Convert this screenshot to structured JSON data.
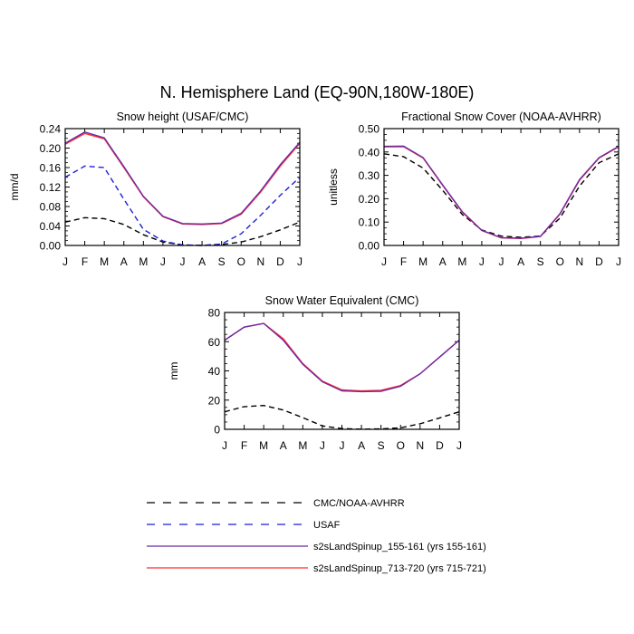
{
  "page_title": "N. Hemisphere Land (EQ-90N,180W-180E)",
  "legend": {
    "items": [
      {
        "label": "CMC/NOAA-AVHRR",
        "color": "#000000",
        "dash": true
      },
      {
        "label": "USAF",
        "color": "#1f1fd6",
        "dash": true
      },
      {
        "label": "s2sLandSpinup_155-161 (yrs 155-161)",
        "color": "#6b2ba8",
        "dash": false
      },
      {
        "label": "s2sLandSpinup_713-720 (yrs 715-721)",
        "color": "#ff2a2a",
        "dash": false
      }
    ]
  },
  "chart_data": [
    {
      "type": "line",
      "title": "Snow height (USAF/CMC)",
      "ylabel": "mm/d",
      "xlabel": "",
      "categories": [
        "J",
        "F",
        "M",
        "A",
        "M",
        "J",
        "J",
        "A",
        "S",
        "O",
        "N",
        "D",
        "J"
      ],
      "ylim": [
        0,
        0.24
      ],
      "yticks": [
        "0.00",
        "0.04",
        "0.08",
        "0.12",
        "0.16",
        "0.20",
        "0.24"
      ],
      "series": [
        {
          "name": "CMC/NOAA-AVHRR",
          "color": "#000000",
          "dash": true,
          "values": [
            0.048,
            0.057,
            0.055,
            0.043,
            0.022,
            0.007,
            0.001,
            0.0,
            0.002,
            0.007,
            0.018,
            0.032,
            0.048
          ]
        },
        {
          "name": "USAF",
          "color": "#1f1fd6",
          "dash": true,
          "values": [
            0.14,
            0.163,
            0.16,
            0.095,
            0.033,
            0.009,
            0.001,
            0.0,
            0.003,
            0.024,
            0.062,
            0.103,
            0.14
          ]
        },
        {
          "name": "s2sLandSpinup_713-720 (yrs 715-721)",
          "color": "#ff2a2a",
          "dash": false,
          "values": [
            0.208,
            0.23,
            0.219,
            0.16,
            0.1,
            0.059,
            0.044,
            0.043,
            0.045,
            0.064,
            0.11,
            0.163,
            0.21
          ]
        },
        {
          "name": "s2sLandSpinup_155-161 (yrs 155-161)",
          "color": "#6b2ba8",
          "dash": false,
          "values": [
            0.21,
            0.233,
            0.221,
            0.162,
            0.101,
            0.06,
            0.045,
            0.044,
            0.046,
            0.066,
            0.112,
            0.166,
            0.212
          ]
        }
      ]
    },
    {
      "type": "line",
      "title": "Fractional Snow Cover (NOAA-AVHRR)",
      "ylabel": "unitless",
      "xlabel": "",
      "categories": [
        "J",
        "F",
        "M",
        "A",
        "M",
        "J",
        "J",
        "A",
        "S",
        "O",
        "N",
        "D",
        "J"
      ],
      "ylim": [
        0,
        0.5
      ],
      "yticks": [
        "0.00",
        "0.10",
        "0.20",
        "0.30",
        "0.40",
        "0.50"
      ],
      "series": [
        {
          "name": "CMC/NOAA-AVHRR",
          "color": "#000000",
          "dash": true,
          "values": [
            0.392,
            0.38,
            0.331,
            0.236,
            0.133,
            0.066,
            0.04,
            0.035,
            0.04,
            0.117,
            0.254,
            0.354,
            0.392
          ]
        },
        {
          "name": "s2sLandSpinup_713-720 (yrs 715-721)",
          "color": "#ff2a2a",
          "dash": false,
          "values": [
            0.422,
            0.423,
            0.374,
            0.257,
            0.143,
            0.064,
            0.032,
            0.03,
            0.038,
            0.134,
            0.279,
            0.374,
            0.422
          ]
        },
        {
          "name": "s2sLandSpinup_155-161 (yrs 155-161)",
          "color": "#6b2ba8",
          "dash": false,
          "values": [
            0.424,
            0.425,
            0.376,
            0.259,
            0.145,
            0.065,
            0.033,
            0.031,
            0.039,
            0.136,
            0.282,
            0.376,
            0.424
          ]
        }
      ]
    },
    {
      "type": "line",
      "title": "Snow Water Equivalent (CMC)",
      "ylabel": "mm",
      "xlabel": "",
      "categories": [
        "J",
        "F",
        "M",
        "A",
        "M",
        "J",
        "J",
        "A",
        "S",
        "O",
        "N",
        "D",
        "J"
      ],
      "ylim": [
        0,
        80
      ],
      "yticks": [
        "0",
        "20",
        "40",
        "60",
        "80"
      ],
      "series": [
        {
          "name": "CMC/NOAA-AVHRR",
          "color": "#000000",
          "dash": true,
          "values": [
            12,
            15.5,
            16.3,
            13.2,
            8.0,
            2.3,
            0.5,
            0.1,
            0.3,
            1.0,
            3.8,
            7.8,
            12
          ]
        },
        {
          "name": "s2sLandSpinup_713-720 (yrs 715-721)",
          "color": "#ff2a2a",
          "dash": false,
          "values": [
            61,
            70,
            72.5,
            62,
            45,
            33,
            27,
            26.3,
            26.7,
            30,
            38,
            49.5,
            61
          ]
        },
        {
          "name": "s2sLandSpinup_155-161 (yrs 155-161)",
          "color": "#6b2ba8",
          "dash": false,
          "values": [
            61,
            70,
            72.5,
            61,
            44.5,
            32.5,
            26.3,
            25.8,
            26,
            29.5,
            38,
            49.5,
            61
          ]
        }
      ]
    }
  ]
}
